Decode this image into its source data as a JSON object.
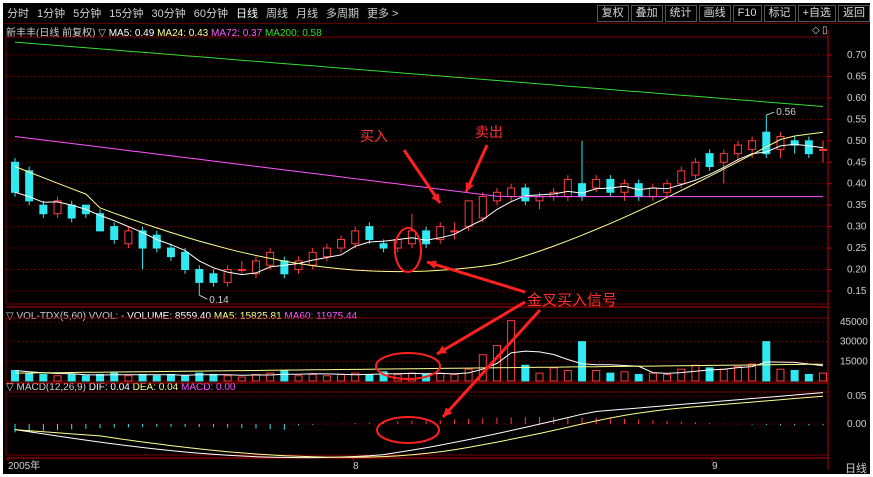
{
  "toolbar": {
    "periods": [
      "分时",
      "1分钟",
      "5分钟",
      "15分钟",
      "30分钟",
      "60分钟",
      "日线",
      "周线",
      "月线",
      "多周期",
      "更多 >"
    ],
    "active_period": "日线",
    "tools": [
      "复权",
      "叠加",
      "统计",
      "画线",
      "F10",
      "标记",
      "+自选",
      "返回"
    ]
  },
  "main_legend": {
    "name": "新丰丰(日线 前复权)",
    "ma5": "MA5: 0.49",
    "ma24": "MA24: 0.43",
    "ma72": "MA72: 0.37",
    "ma200": "MA200: 0.58"
  },
  "vol_legend": {
    "name": "VOL-TDX(5,60)",
    "vvol": "VVOL: -",
    "volume": "VOLUME: 8559.40",
    "ma5": "MA5: 15825.81",
    "ma60": "MA60: 11975.44"
  },
  "macd_legend": {
    "name": "MACD(12,26,9)",
    "dif": "DIF: 0.04",
    "dea": "DEA: 0.04",
    "macd": "MACD: 0.00"
  },
  "annotations": {
    "buy": "买入",
    "sell": "卖出",
    "golden_cross": "金叉买入信号",
    "low_label": "0.14",
    "high_label": "0.56"
  },
  "axis": {
    "price_ticks": [
      "0.70",
      "0.65",
      "0.60",
      "0.55",
      "0.50",
      "0.45",
      "0.40",
      "0.35",
      "0.30",
      "0.25",
      "0.20",
      "0.15"
    ],
    "volume_ticks": [
      "45000",
      "30000",
      "15000"
    ],
    "macd_ticks": [
      "0.05",
      "0.00"
    ],
    "date_labels": [
      "2005年",
      "8",
      "9"
    ],
    "period_label": "日线"
  },
  "colors": {
    "up": "#ff3c3c",
    "down": "#30e8f0",
    "ma5": "#ffffff",
    "ma24": "#ffff90",
    "ma72": "#ff55ff",
    "ma200": "#33dd33",
    "grid": "#7a0000"
  }
}
